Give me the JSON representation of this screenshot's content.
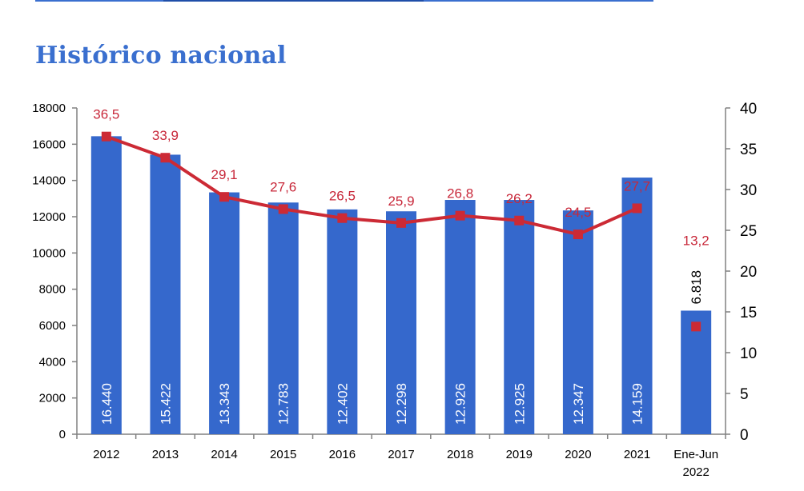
{
  "page_title": "Histórico nacional",
  "colors": {
    "bar": "#3568cc",
    "line": "#cc2a35",
    "axis": "#808080",
    "title": "#3a6fcf"
  },
  "chart_data": {
    "type": "bar",
    "categories": [
      "2012",
      "2013",
      "2014",
      "2015",
      "2016",
      "2017",
      "2018",
      "2019",
      "2020",
      "2021",
      "Ene-Jun 2022"
    ],
    "series": [
      {
        "type": "bar",
        "axis": "left",
        "values": [
          16440,
          15422,
          13343,
          12783,
          12402,
          12298,
          12926,
          12925,
          12347,
          14159,
          6818
        ],
        "labels": [
          "16.440",
          "15.422",
          "13.343",
          "12.783",
          "12.402",
          "12.298",
          "12.926",
          "12.925",
          "12.347",
          "14.159",
          "6.818"
        ]
      },
      {
        "type": "line",
        "axis": "right",
        "values": [
          36.5,
          33.9,
          29.1,
          27.6,
          26.5,
          25.9,
          26.8,
          26.2,
          24.5,
          27.7,
          13.2
        ],
        "labels": [
          "36,5",
          "33,9",
          "29,1",
          "27,6",
          "26,5",
          "25,9",
          "26,8",
          "26,2",
          "24,5",
          "27,7",
          "13,2"
        ]
      }
    ],
    "ylim": [
      0,
      18000
    ],
    "y_ticks": [
      "0",
      "2000",
      "4000",
      "6000",
      "8000",
      "10000",
      "12000",
      "14000",
      "16000",
      "18000"
    ],
    "y2lim": [
      0,
      40
    ],
    "y2_ticks": [
      "0",
      "5",
      "10",
      "15",
      "20",
      "25",
      "30",
      "35",
      "40"
    ],
    "grid": false,
    "legend": "none"
  }
}
